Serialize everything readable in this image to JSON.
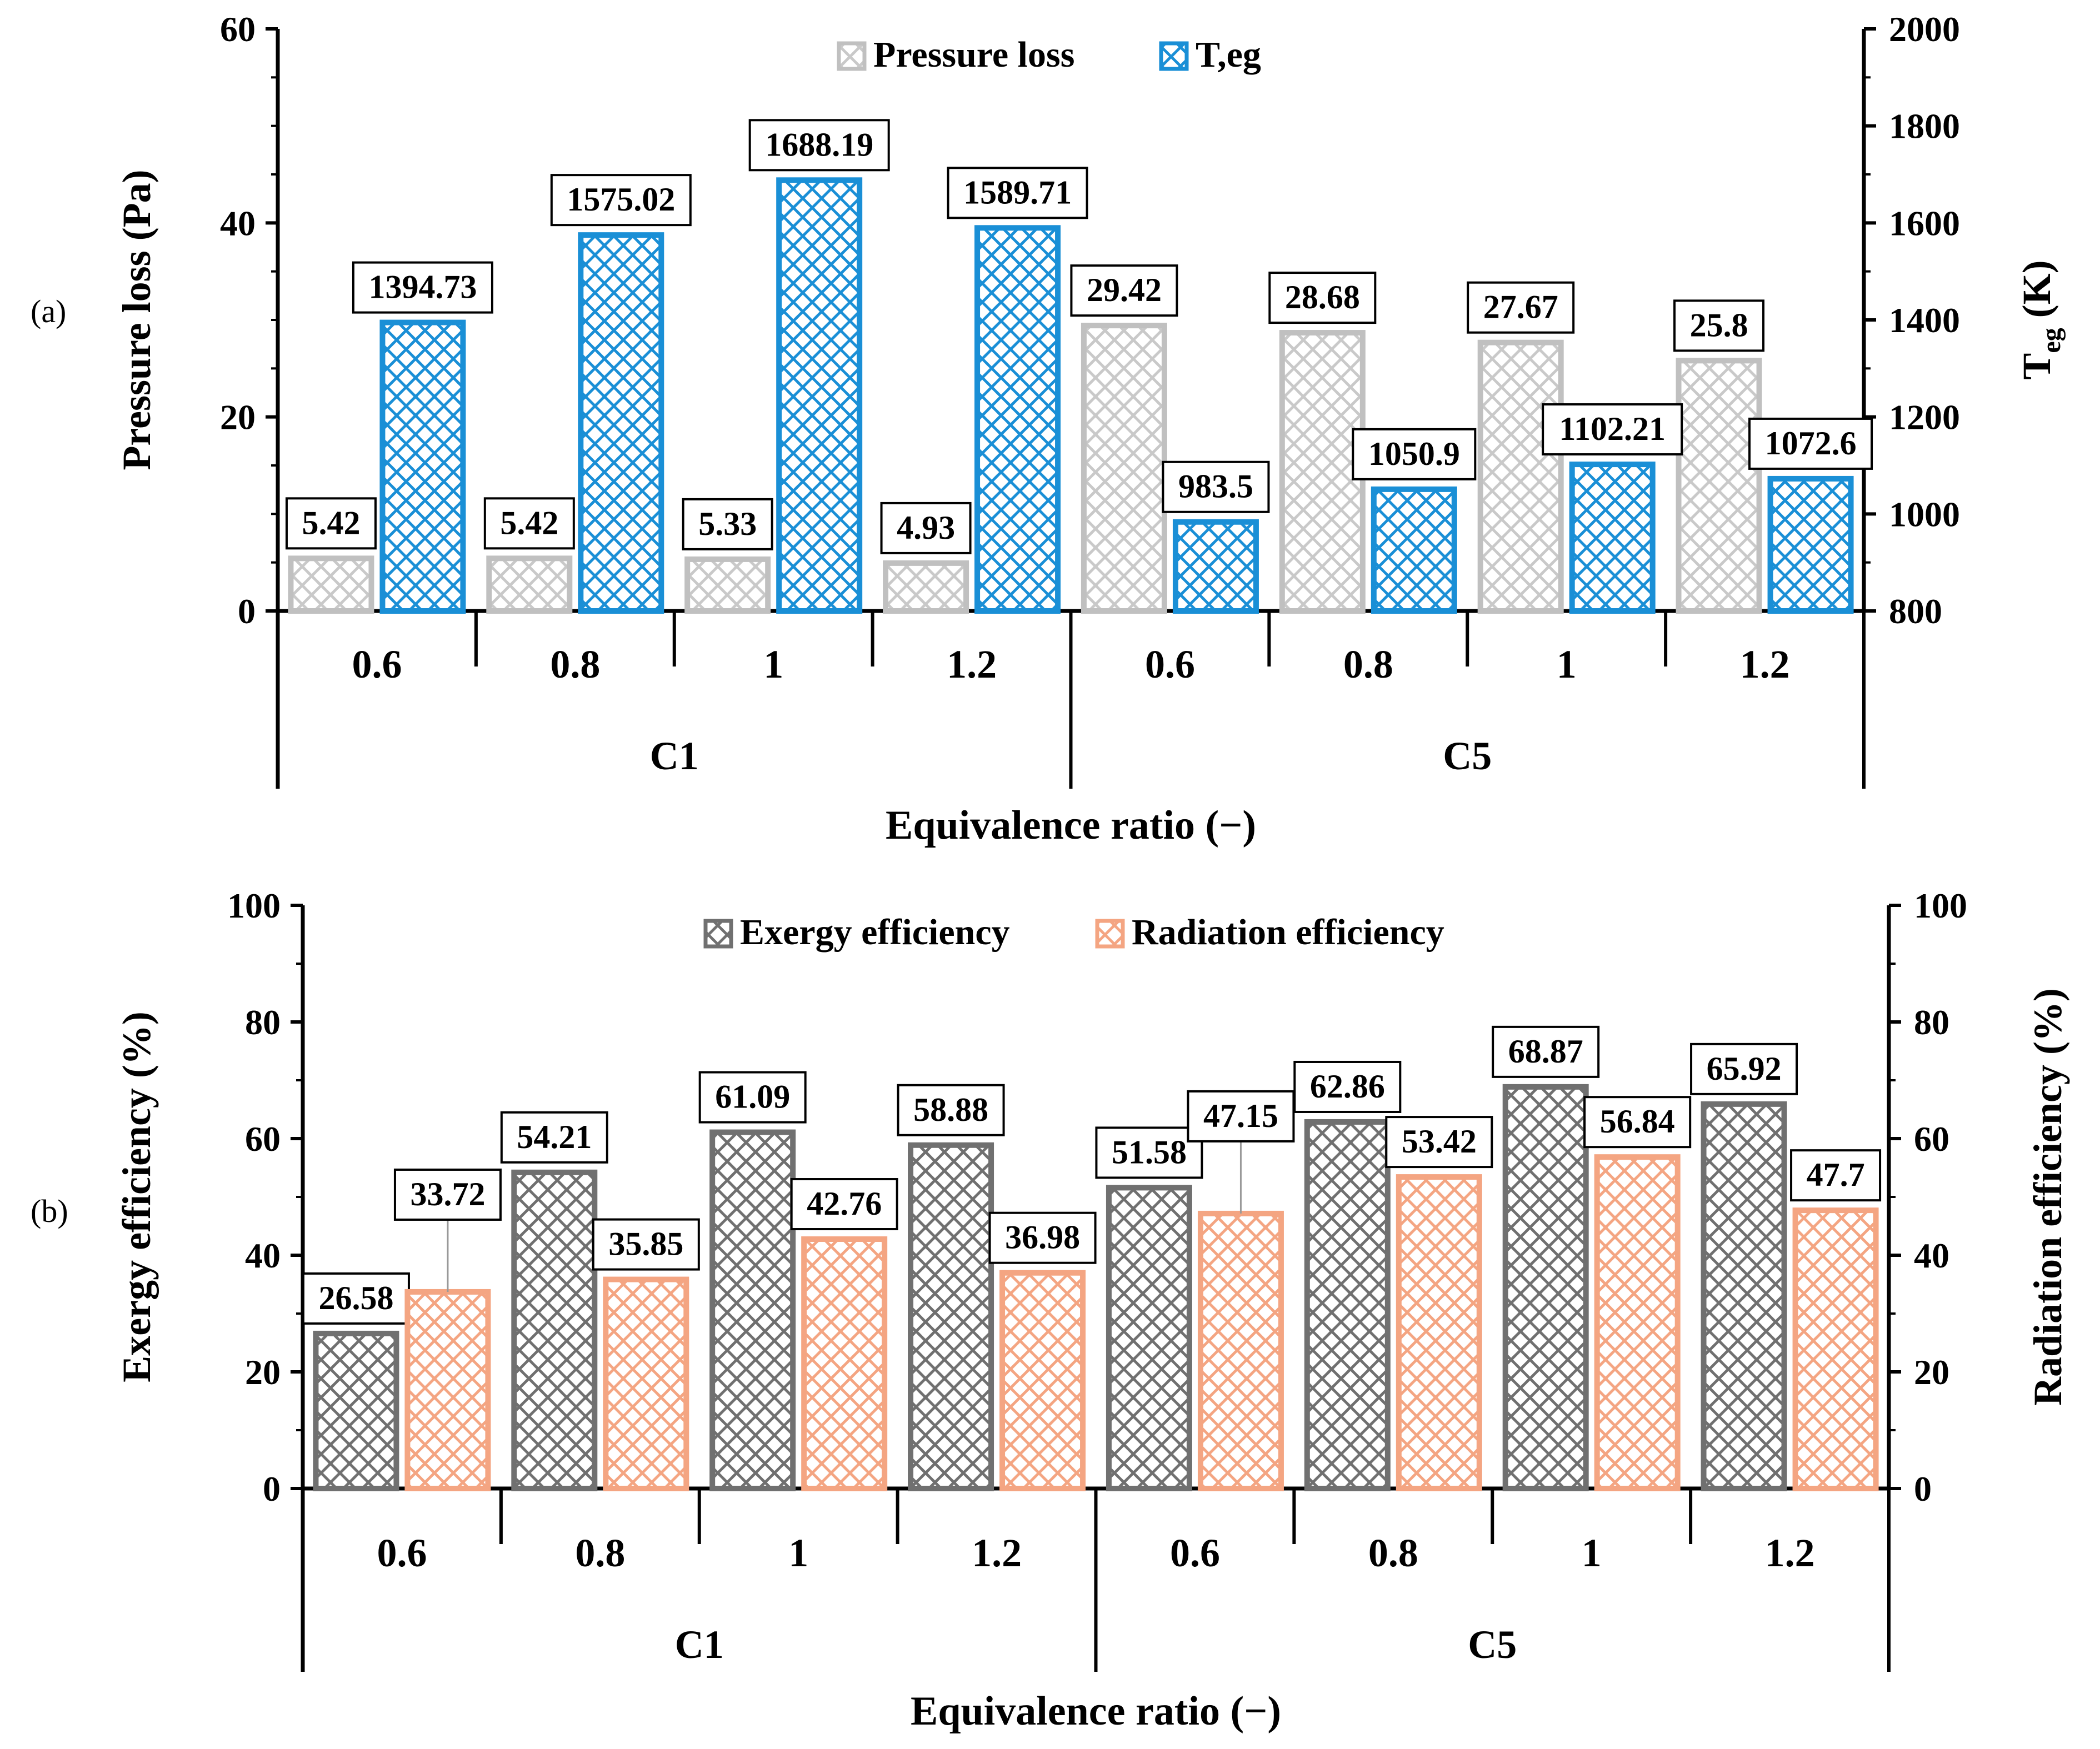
{
  "chart_data": [
    {
      "type": "bar",
      "panel_label": "(a)",
      "title": "",
      "group_levels": [
        {
          "name": "Equivalence ratio",
          "categories": [
            "0.6",
            "0.8",
            "1",
            "1.2",
            "0.6",
            "0.8",
            "1",
            "1.2"
          ]
        },
        {
          "name": "Case",
          "categories": [
            "C1",
            "C5"
          ]
        }
      ],
      "xlabel": "Equivalence ratio (−)",
      "ylabel": "Pressure loss (Pa)",
      "ylabel_right_main": "T",
      "ylabel_right_sub": "eg",
      "ylabel_right_unit": " (K)",
      "ylim": [
        0,
        60
      ],
      "yticks": [
        "0",
        "20",
        "40",
        "60"
      ],
      "ylim_right": [
        800,
        2000
      ],
      "yticks_right": [
        "800",
        "1000",
        "1200",
        "1400",
        "1600",
        "1800",
        "2000"
      ],
      "legend_position": "top-center",
      "series": [
        {
          "name": "Pressure loss",
          "axis": "left",
          "color": "#c0c0c0",
          "pattern": "diamond",
          "values": [
            5.42,
            5.42,
            5.33,
            4.93,
            29.42,
            28.68,
            27.67,
            25.8
          ],
          "labels": [
            "5.42",
            "5.42",
            "5.33",
            "4.93",
            "29.42",
            "28.68",
            "27.67",
            "25.8"
          ]
        },
        {
          "name": "T,eg",
          "axis": "right",
          "color": "#1a8fd6",
          "pattern": "diamond",
          "values": [
            1394.73,
            1575.02,
            1688.19,
            1589.71,
            983.5,
            1050.9,
            1102.21,
            1072.6
          ],
          "labels": [
            "1394.73",
            "1575.02",
            "1688.19",
            "1589.71",
            "983.5",
            "1050.9",
            "1102.21",
            "1072.6"
          ]
        }
      ]
    },
    {
      "type": "bar",
      "panel_label": "(b)",
      "title": "",
      "group_levels": [
        {
          "name": "Equivalence ratio",
          "categories": [
            "0.6",
            "0.8",
            "1",
            "1.2",
            "0.6",
            "0.8",
            "1",
            "1.2"
          ]
        },
        {
          "name": "Case",
          "categories": [
            "C1",
            "C5"
          ]
        }
      ],
      "xlabel": "Equivalence ratio (−)",
      "ylabel": "Exergy efficiency (%)",
      "ylabel_right": "Radiation efficiency (%)",
      "ylim": [
        0,
        100
      ],
      "yticks": [
        "0",
        "20",
        "40",
        "60",
        "80",
        "100"
      ],
      "ylim_right": [
        0,
        100
      ],
      "yticks_right": [
        "0",
        "20",
        "40",
        "60",
        "80",
        "100"
      ],
      "legend_position": "top-center",
      "series": [
        {
          "name": "Exergy efficiency",
          "axis": "left",
          "color": "#707070",
          "pattern": "diamond",
          "values": [
            26.58,
            54.21,
            61.09,
            58.88,
            51.58,
            62.86,
            68.87,
            65.92
          ],
          "labels": [
            "26.58",
            "54.21",
            "61.09",
            "58.88",
            "51.58",
            "62.86",
            "68.87",
            "65.92"
          ]
        },
        {
          "name": "Radiation efficiency",
          "axis": "right",
          "color": "#f4a582",
          "pattern": "diamond",
          "values": [
            33.72,
            35.85,
            42.76,
            36.98,
            47.15,
            53.42,
            56.84,
            47.7
          ],
          "labels": [
            "33.72",
            "35.85",
            "42.76",
            "36.98",
            "47.15",
            "53.42",
            "56.84",
            "47.7"
          ]
        }
      ]
    }
  ]
}
